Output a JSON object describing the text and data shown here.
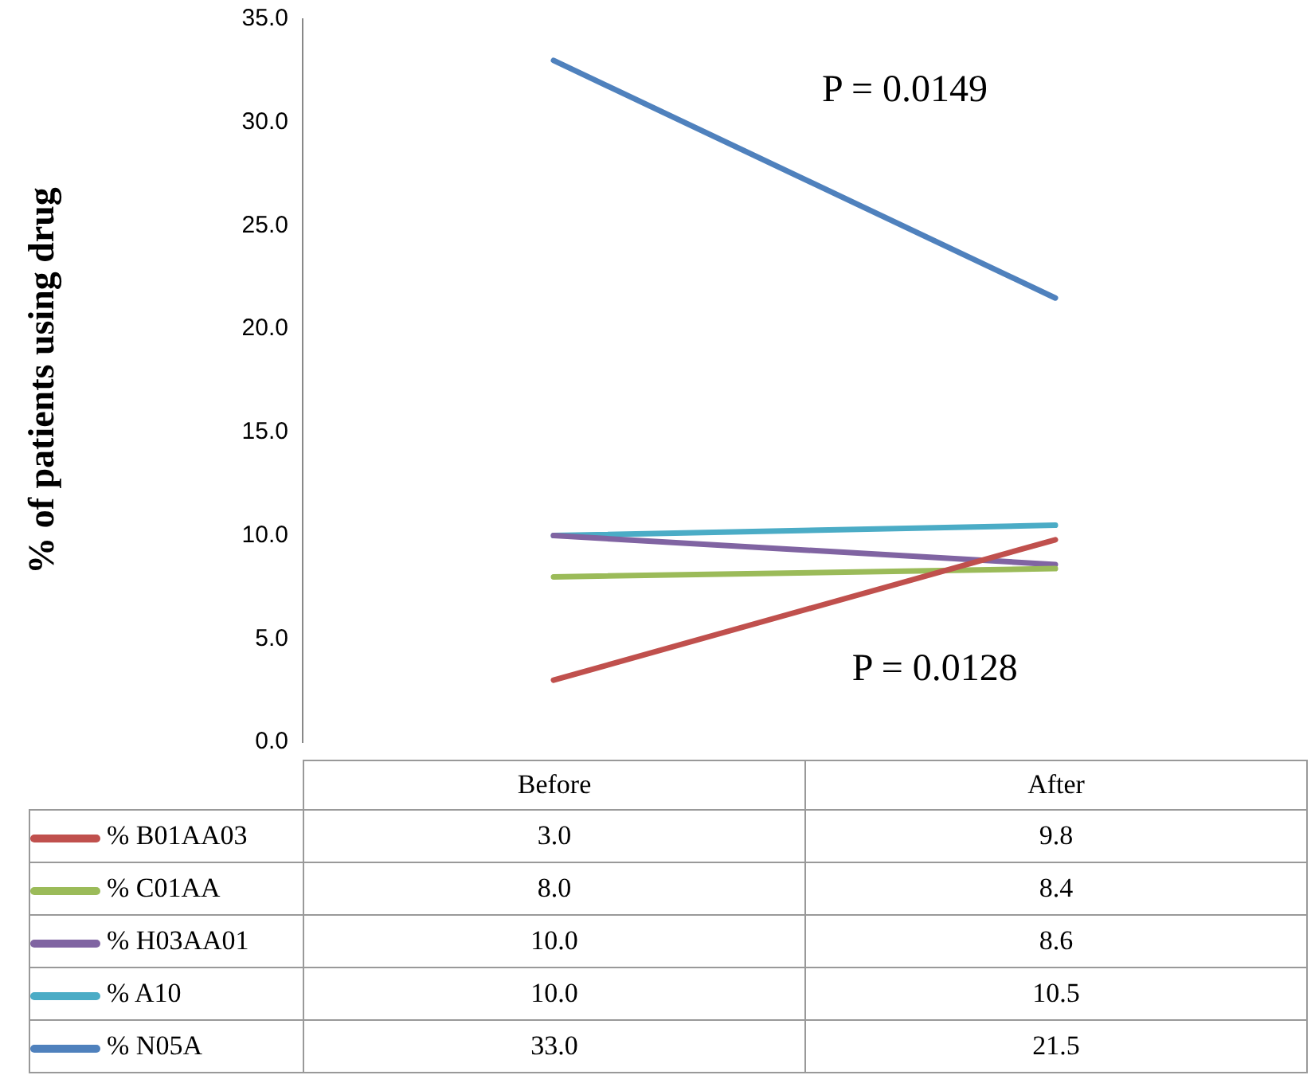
{
  "chart_data": {
    "type": "line",
    "ylabel": "% of patients using drug",
    "categories": [
      "Before",
      "After"
    ],
    "series": [
      {
        "name": "% B01AA03",
        "color": "#c0504d",
        "values": [
          3.0,
          9.8
        ],
        "value_labels": [
          "3.0",
          "9.8"
        ]
      },
      {
        "name": "% C01AA",
        "color": "#9bbb59",
        "values": [
          8.0,
          8.4
        ],
        "value_labels": [
          "8.0",
          "8.4"
        ]
      },
      {
        "name": "% H03AA01",
        "color": "#8064a2",
        "values": [
          10.0,
          8.6
        ],
        "value_labels": [
          "10.0",
          "8.6"
        ]
      },
      {
        "name": "% A10",
        "color": "#4bacc6",
        "values": [
          10.0,
          10.5
        ],
        "value_labels": [
          "10.0",
          "10.5"
        ]
      },
      {
        "name": "% N05A",
        "color": "#4f81bd",
        "values": [
          33.0,
          21.5
        ],
        "value_labels": [
          "33.0",
          "21.5"
        ]
      }
    ],
    "ylim": [
      0,
      35
    ],
    "yticks": [
      {
        "value": 0,
        "label": "0.0"
      },
      {
        "value": 5,
        "label": "5.0"
      },
      {
        "value": 10,
        "label": "10.0"
      },
      {
        "value": 15,
        "label": "15.0"
      },
      {
        "value": 20,
        "label": "20.0"
      },
      {
        "value": 25,
        "label": "25.0"
      },
      {
        "value": 30,
        "label": "30.0"
      },
      {
        "value": 35,
        "label": "35.0"
      }
    ],
    "annotations": [
      "P = 0.0149",
      "P = 0.0128"
    ],
    "grid": false,
    "legend": "bottom",
    "marker": "none",
    "line_style": "solid"
  }
}
